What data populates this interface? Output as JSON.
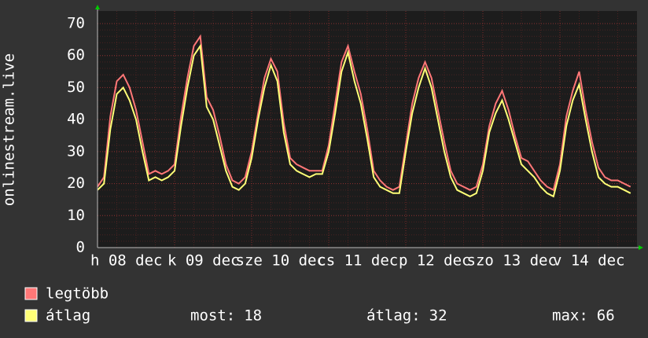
{
  "chart_data": {
    "type": "line",
    "ylabel": "onlinestream.live",
    "ylim": [
      0,
      70
    ],
    "yticks": [
      0,
      10,
      20,
      30,
      40,
      50,
      60,
      70
    ],
    "xlim": [
      0,
      84
    ],
    "xticks": [
      {
        "value": 4.5,
        "label": "h 08 dec"
      },
      {
        "value": 16.5,
        "label": "k 09 dec"
      },
      {
        "value": 28.5,
        "label": "sze 10 dec"
      },
      {
        "value": 40.5,
        "label": "cs 11 dec"
      },
      {
        "value": 52.5,
        "label": "p 12 dec"
      },
      {
        "value": 64.5,
        "label": "szo 13 dec"
      },
      {
        "value": 76.5,
        "label": "v 14 dec"
      }
    ],
    "grid": true,
    "series": [
      {
        "name": "legtöbb",
        "color": "#ff7777",
        "values": [
          19,
          22,
          41,
          52,
          54,
          50,
          43,
          33,
          23,
          24,
          23,
          24,
          26,
          41,
          53,
          63,
          66,
          47,
          43,
          35,
          26,
          21,
          20,
          22,
          30,
          42,
          53,
          59,
          55,
          39,
          28,
          26,
          25,
          24,
          24,
          24,
          32,
          45,
          58,
          63,
          55,
          48,
          37,
          24,
          21,
          19,
          18,
          19,
          32,
          45,
          53,
          58,
          53,
          43,
          33,
          24,
          20,
          19,
          18,
          19,
          26,
          38,
          45,
          49,
          43,
          35,
          28,
          27,
          24,
          21,
          19,
          18,
          26,
          41,
          49,
          55,
          43,
          33,
          25,
          22,
          21,
          21,
          20,
          19
        ]
      },
      {
        "name": "átlag",
        "color": "#ffff77",
        "values": [
          18,
          20,
          37,
          48,
          50,
          46,
          40,
          30,
          21,
          22,
          21,
          22,
          24,
          38,
          50,
          60,
          63,
          44,
          40,
          32,
          24,
          19,
          18,
          20,
          28,
          40,
          50,
          57,
          52,
          36,
          26,
          24,
          23,
          22,
          23,
          23,
          30,
          42,
          55,
          61,
          52,
          45,
          34,
          22,
          19,
          18,
          17,
          17,
          30,
          42,
          50,
          56,
          50,
          40,
          30,
          22,
          18,
          17,
          16,
          17,
          24,
          36,
          42,
          46,
          40,
          33,
          26,
          24,
          22,
          19,
          17,
          16,
          24,
          38,
          46,
          51,
          40,
          30,
          22,
          20,
          19,
          19,
          18,
          17
        ]
      }
    ],
    "stats": [
      {
        "label": "most:",
        "value": 18
      },
      {
        "label": "átlag:",
        "value": 32
      },
      {
        "label": "max:",
        "value": 66
      }
    ]
  }
}
